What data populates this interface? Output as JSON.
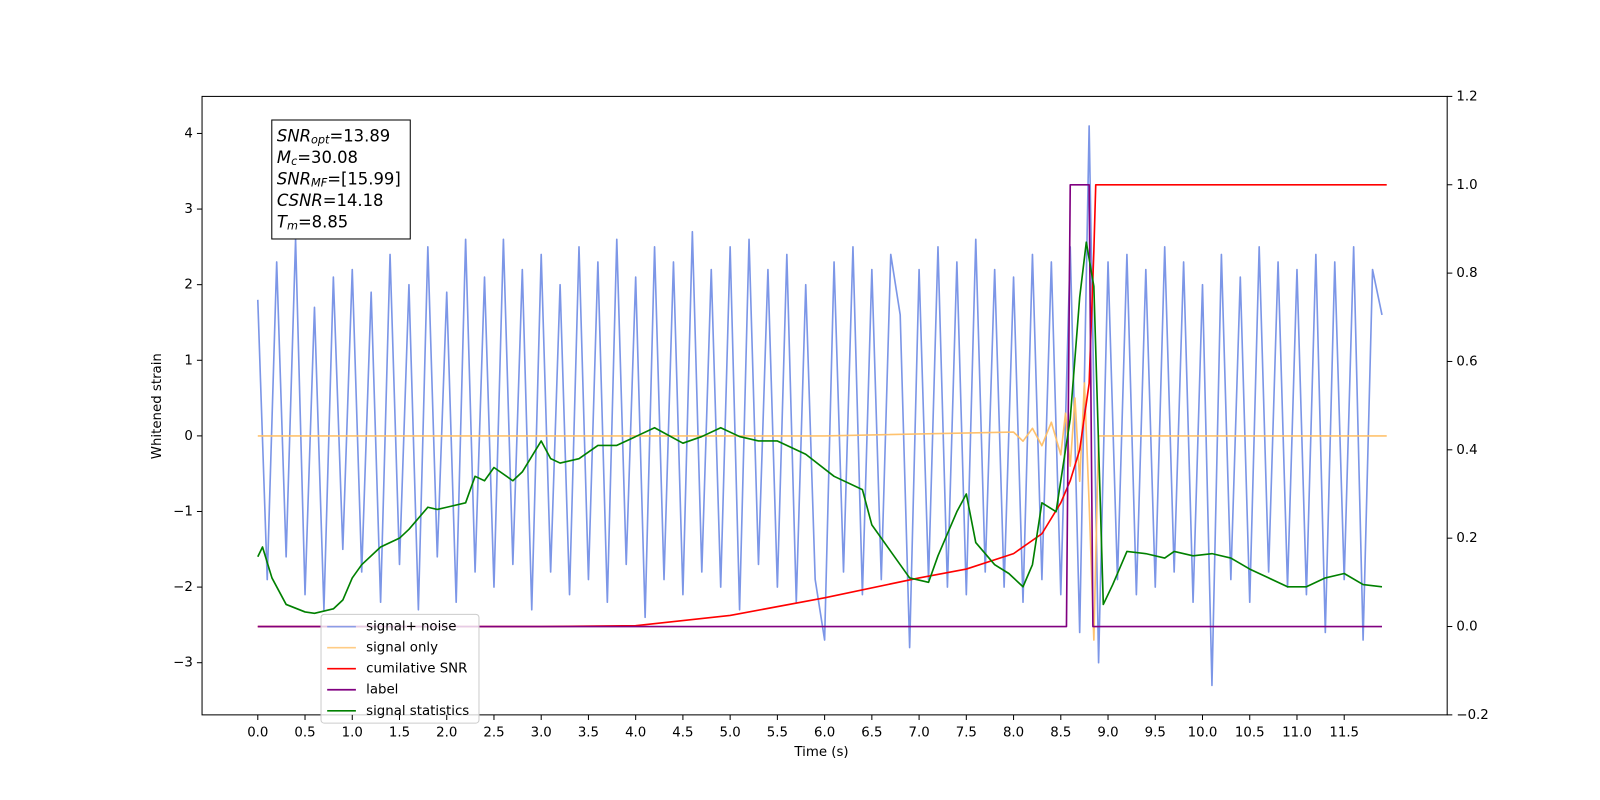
{
  "chart_data": {
    "type": "line",
    "xlabel": "Time (s)",
    "ylabel": "Whitened strain",
    "xlim": [
      -0.59,
      12.59
    ],
    "ylim": [
      -3.69,
      4.49
    ],
    "y2lim": [
      -0.2,
      1.2
    ],
    "xticks": [
      {
        "value": 0,
        "label": "0.0"
      },
      0.5,
      {
        "value": 1,
        "label": "1.0"
      },
      1.5,
      {
        "value": 2,
        "label": "2.0"
      },
      2.5,
      {
        "value": 3,
        "label": "3.0"
      },
      3.5,
      {
        "value": 4,
        "label": "4.0"
      },
      4.5,
      {
        "value": 5,
        "label": "5.0"
      },
      5.5,
      {
        "value": 6,
        "label": "6.0"
      },
      6.5,
      {
        "value": 7,
        "label": "7.0"
      },
      7.5,
      {
        "value": 8,
        "label": "8.0"
      },
      8.5,
      {
        "value": 9,
        "label": "9.0"
      },
      9.5,
      {
        "value": 10,
        "label": "10.0"
      },
      10.5,
      {
        "value": 11,
        "label": "11.0"
      },
      11.5
    ],
    "yticks": [
      {
        "value": -3,
        "label": "−3"
      },
      {
        "value": -2,
        "label": "−2"
      },
      {
        "value": -1,
        "label": "−1"
      },
      0,
      1,
      2,
      3,
      4
    ],
    "y2ticks": [
      {
        "value": -0.2,
        "label": "−0.2"
      },
      {
        "value": 0,
        "label": "0.0"
      },
      0.2,
      0.4,
      0.6,
      0.8,
      {
        "value": 1,
        "label": "1.0"
      },
      1.2
    ],
    "legend": "lower left",
    "annotation": [
      {
        "symbol": "SNR",
        "sub": "opt",
        "text": "=13.89"
      },
      {
        "symbol": "M",
        "sub": "c",
        "text": "=30.08"
      },
      {
        "symbol": "SNR",
        "sub": "MF",
        "text": "=[15.99]"
      },
      {
        "symbol": "CSNR",
        "text": "=14.18"
      },
      {
        "symbol": "T",
        "sub": "m",
        "text": "=8.85"
      }
    ],
    "series": [
      {
        "name": "signal+ noise",
        "color": "#7590e6",
        "x": [
          0.0,
          0.1,
          0.2,
          0.3,
          0.4,
          0.5,
          0.6,
          0.7,
          0.8,
          0.9,
          1.0,
          1.1,
          1.2,
          1.3,
          1.4,
          1.5,
          1.6,
          1.7,
          1.8,
          1.9,
          2.0,
          2.1,
          2.2,
          2.3,
          2.4,
          2.5,
          2.6,
          2.7,
          2.8,
          2.9,
          3.0,
          3.1,
          3.2,
          3.3,
          3.4,
          3.5,
          3.6,
          3.7,
          3.8,
          3.9,
          4.0,
          4.1,
          4.2,
          4.3,
          4.4,
          4.5,
          4.6,
          4.7,
          4.8,
          4.9,
          5.0,
          5.1,
          5.2,
          5.3,
          5.4,
          5.5,
          5.6,
          5.7,
          5.8,
          5.9,
          6.0,
          6.1,
          6.2,
          6.3,
          6.4,
          6.5,
          6.6,
          6.7,
          6.8,
          6.9,
          7.0,
          7.1,
          7.2,
          7.3,
          7.4,
          7.5,
          7.6,
          7.7,
          7.8,
          7.9,
          8.0,
          8.1,
          8.2,
          8.3,
          8.4,
          8.5,
          8.6,
          8.7,
          8.8,
          8.9,
          9.0,
          9.1,
          9.2,
          9.3,
          9.4,
          9.5,
          9.6,
          9.7,
          9.8,
          9.9,
          10.0,
          10.1,
          10.2,
          10.3,
          10.4,
          10.5,
          10.6,
          10.7,
          10.8,
          10.9,
          11.0,
          11.1,
          11.2,
          11.3,
          11.4,
          11.5,
          11.6,
          11.7,
          11.8,
          11.9
        ],
        "values": [
          1.8,
          -1.9,
          2.3,
          -1.6,
          2.6,
          -2.1,
          1.7,
          -2.3,
          2.1,
          -1.5,
          2.2,
          -1.8,
          1.9,
          -2.2,
          2.4,
          -1.7,
          2.0,
          -2.3,
          2.5,
          -1.6,
          1.9,
          -2.2,
          2.6,
          -1.8,
          2.1,
          -2.0,
          2.6,
          -1.7,
          2.2,
          -2.3,
          2.4,
          -1.8,
          2.0,
          -2.1,
          2.5,
          -1.9,
          2.3,
          -2.2,
          2.6,
          -1.7,
          2.1,
          -2.4,
          2.5,
          -1.9,
          2.3,
          -2.1,
          2.7,
          -1.8,
          2.2,
          -2.0,
          2.5,
          -2.3,
          2.6,
          -1.7,
          2.2,
          -2.0,
          2.4,
          -2.2,
          2.0,
          -1.9,
          -2.7,
          2.3,
          -1.8,
          2.5,
          -2.1,
          2.2,
          -1.9,
          2.4,
          1.6,
          -2.8,
          2.2,
          -1.9,
          2.5,
          -2.0,
          2.3,
          -2.1,
          2.6,
          -1.8,
          2.2,
          -2.0,
          2.1,
          -2.2,
          2.4,
          -1.9,
          2.3,
          -2.1,
          2.5,
          -2.6,
          4.1,
          -3.0,
          2.3,
          -1.9,
          2.4,
          -2.1,
          2.2,
          -2.0,
          2.5,
          -1.8,
          2.3,
          -2.2,
          2.0,
          -3.3,
          2.4,
          -1.9,
          2.1,
          -2.2,
          2.5,
          -1.8,
          2.3,
          -2.0,
          2.2,
          -2.1,
          2.4,
          -2.6,
          2.3,
          -1.9,
          2.5,
          -2.7,
          2.2,
          1.6
        ]
      },
      {
        "name": "signal only",
        "color": "#ffbf66",
        "x": [
          0,
          6.0,
          8.0,
          8.1,
          8.2,
          8.3,
          8.4,
          8.5,
          8.55,
          8.6,
          8.65,
          8.7,
          8.75,
          8.8,
          8.85,
          8.9,
          11.95
        ],
        "values": [
          0,
          0,
          0.05,
          -0.07,
          0.1,
          -0.13,
          0.18,
          -0.25,
          0.3,
          -0.4,
          0.5,
          -0.6,
          0.7,
          -0.9,
          -2.7,
          0,
          0
        ]
      },
      {
        "name": "cumilative SNR",
        "color": "#ff0000",
        "axis": "y2",
        "x": [
          0,
          3,
          4,
          5,
          6,
          7,
          7.5,
          8,
          8.3,
          8.5,
          8.6,
          8.7,
          8.8,
          8.85,
          8.87,
          11.95
        ],
        "values": [
          0,
          0,
          0.002,
          0.025,
          0.065,
          0.11,
          0.13,
          0.165,
          0.21,
          0.28,
          0.33,
          0.4,
          0.55,
          0.85,
          1.0,
          1.0
        ]
      },
      {
        "name": "label",
        "color": "#800080",
        "axis": "y2",
        "x": [
          0,
          8.56,
          8.6,
          8.8,
          8.84,
          11.9
        ],
        "values": [
          0,
          0,
          1,
          1,
          0,
          0
        ]
      },
      {
        "name": "signal statistics",
        "color": "#008000",
        "axis": "y2",
        "x": [
          0,
          0.05,
          0.15,
          0.3,
          0.5,
          0.6,
          0.8,
          0.9,
          1.0,
          1.1,
          1.3,
          1.5,
          1.6,
          1.8,
          1.9,
          2.0,
          2.2,
          2.3,
          2.4,
          2.5,
          2.7,
          2.8,
          3.0,
          3.1,
          3.2,
          3.4,
          3.6,
          3.8,
          4.0,
          4.2,
          4.5,
          4.7,
          4.9,
          5.1,
          5.3,
          5.5,
          5.8,
          6.1,
          6.4,
          6.5,
          6.7,
          6.9,
          7.1,
          7.2,
          7.4,
          7.5,
          7.6,
          7.8,
          7.95,
          8.1,
          8.2,
          8.3,
          8.45,
          8.6,
          8.7,
          8.77,
          8.85,
          8.95,
          9.05,
          9.2,
          9.4,
          9.6,
          9.7,
          9.9,
          10.1,
          10.3,
          10.5,
          10.7,
          10.9,
          11.1,
          11.3,
          11.5,
          11.7,
          11.9
        ],
        "values": [
          0.158,
          0.18,
          0.11,
          0.05,
          0.033,
          0.03,
          0.04,
          0.06,
          0.11,
          0.14,
          0.18,
          0.2,
          0.22,
          0.27,
          0.265,
          0.27,
          0.28,
          0.34,
          0.33,
          0.36,
          0.33,
          0.35,
          0.42,
          0.38,
          0.37,
          0.38,
          0.41,
          0.41,
          0.43,
          0.45,
          0.415,
          0.43,
          0.45,
          0.43,
          0.42,
          0.42,
          0.39,
          0.34,
          0.31,
          0.23,
          0.17,
          0.11,
          0.1,
          0.16,
          0.26,
          0.3,
          0.19,
          0.14,
          0.12,
          0.09,
          0.14,
          0.28,
          0.26,
          0.47,
          0.745,
          0.87,
          0.77,
          0.05,
          0.095,
          0.17,
          0.165,
          0.155,
          0.17,
          0.16,
          0.165,
          0.155,
          0.13,
          0.11,
          0.09,
          0.09,
          0.11,
          0.12,
          0.095,
          0.09
        ]
      }
    ]
  }
}
